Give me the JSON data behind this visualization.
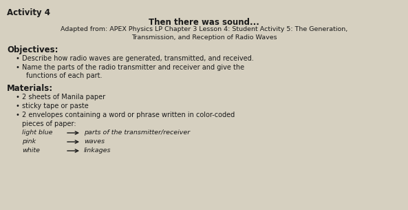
{
  "bg_color": "#d6d0c0",
  "text_color": "#1a1a1a",
  "activity_title": "Activity 4",
  "main_title": "Then there was sound...",
  "adapted_line1": "Adapted from: APEX Physics LP Chapter 3 Lesson 4: Student Activity 5: The Generation,",
  "adapted_line2": "Transmission, and Reception of Radio Waves",
  "objectives_header": "Objectives:",
  "obj1": "Describe how radio waves are generated, transmitted, and received.",
  "obj2_line1": "Name the parts of the radio transmitter and receiver and give the",
  "obj2_line2": "functions of each part.",
  "materials_header": "Materials:",
  "mat1": "2 sheets of Manila paper",
  "mat2": "sticky tape or paste",
  "mat3_line1": "2 envelopes containing a word or phrase written in color-coded",
  "mat3_line2": "pieces of paper:",
  "color1_label": "light blue",
  "color1_desc": "parts of the transmitter/receiver",
  "color2_label": "pink",
  "color2_desc": "waves",
  "color3_label": "white",
  "color3_desc": "linkages"
}
